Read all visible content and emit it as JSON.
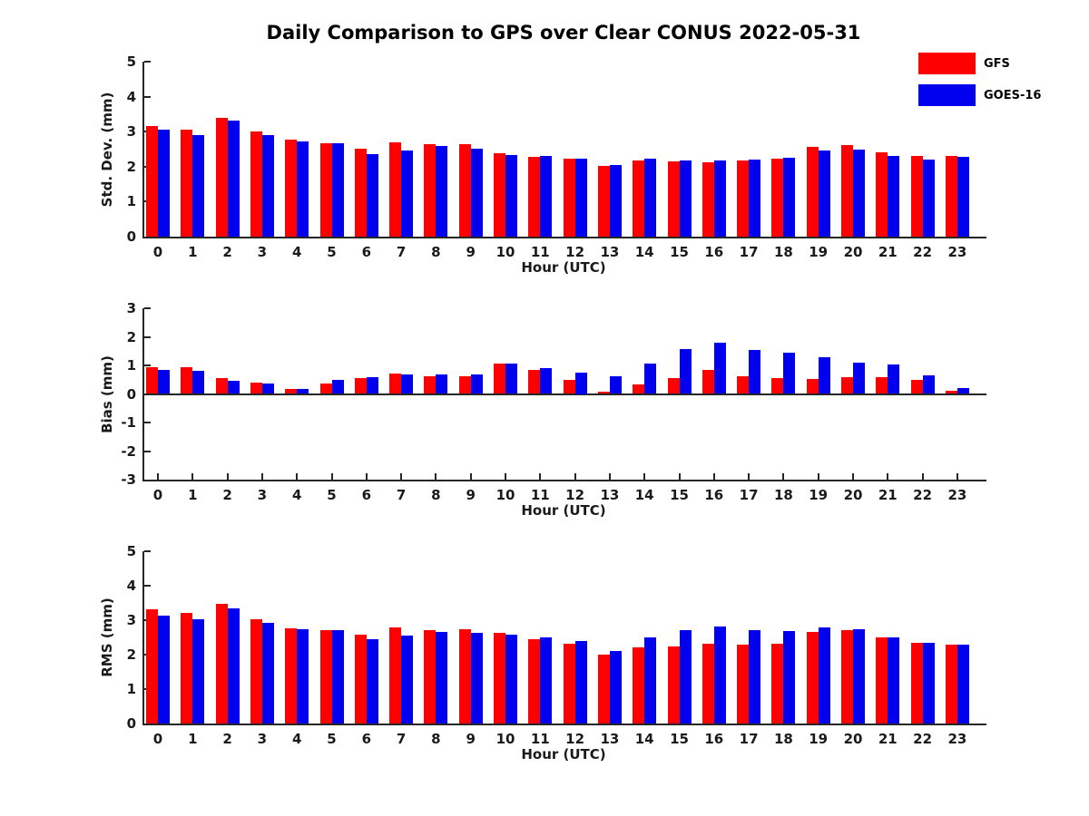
{
  "title": "Daily Comparison to GPS over Clear CONUS 2022-05-31",
  "colors": {
    "gfs": "#ff0000",
    "goes16": "#0000ee",
    "axis": "#262626",
    "text": "#1a1a1a"
  },
  "legend": {
    "position": "top-right",
    "items": [
      {
        "label": "GFS",
        "color": "#ff0000"
      },
      {
        "label": "GOES-16",
        "color": "#0000ee"
      }
    ]
  },
  "chart_data": [
    {
      "type": "bar",
      "panel": "std-dev",
      "ylabel": "Std. Dev. (mm)",
      "xlabel": "Hour (UTC)",
      "ylim": [
        0,
        5
      ],
      "yticks": [
        0,
        1,
        2,
        3,
        4,
        5
      ],
      "grid": false,
      "categories": [
        "0",
        "1",
        "2",
        "3",
        "4",
        "5",
        "6",
        "7",
        "8",
        "9",
        "10",
        "11",
        "12",
        "13",
        "14",
        "15",
        "16",
        "17",
        "18",
        "19",
        "20",
        "21",
        "22",
        "23"
      ],
      "series": [
        {
          "name": "GFS",
          "values": [
            3.15,
            3.06,
            3.4,
            3.01,
            2.76,
            2.67,
            2.51,
            2.7,
            2.63,
            2.63,
            2.39,
            2.27,
            2.23,
            2.02,
            2.18,
            2.14,
            2.12,
            2.18,
            2.24,
            2.57,
            2.61,
            2.41,
            2.31,
            2.31
          ]
        },
        {
          "name": "GOES-16",
          "values": [
            3.05,
            2.91,
            3.31,
            2.91,
            2.73,
            2.67,
            2.36,
            2.45,
            2.58,
            2.51,
            2.33,
            2.31,
            2.23,
            2.04,
            2.23,
            2.18,
            2.17,
            2.19,
            2.25,
            2.47,
            2.5,
            2.3,
            2.21,
            2.27
          ]
        }
      ]
    },
    {
      "type": "bar",
      "panel": "bias",
      "ylabel": "Bias (mm)",
      "xlabel": "Hour (UTC)",
      "ylim": [
        -3,
        3
      ],
      "yticks": [
        -3,
        -2,
        -1,
        0,
        1,
        2,
        3
      ],
      "grid": false,
      "categories": [
        "0",
        "1",
        "2",
        "3",
        "4",
        "5",
        "6",
        "7",
        "8",
        "9",
        "10",
        "11",
        "12",
        "13",
        "14",
        "15",
        "16",
        "17",
        "18",
        "19",
        "20",
        "21",
        "22",
        "23"
      ],
      "series": [
        {
          "name": "GFS",
          "values": [
            0.95,
            0.93,
            0.57,
            0.41,
            0.16,
            0.37,
            0.56,
            0.71,
            0.62,
            0.62,
            1.06,
            0.84,
            0.49,
            0.08,
            0.32,
            0.57,
            0.85,
            0.62,
            0.57,
            0.51,
            0.6,
            0.6,
            0.48,
            0.1
          ]
        },
        {
          "name": "GOES-16",
          "values": [
            0.84,
            0.81,
            0.46,
            0.38,
            0.17,
            0.49,
            0.6,
            0.68,
            0.67,
            0.67,
            1.05,
            0.89,
            0.75,
            0.61,
            1.06,
            1.56,
            1.79,
            1.53,
            1.45,
            1.27,
            1.1,
            1.02,
            0.65,
            0.2
          ]
        }
      ]
    },
    {
      "type": "bar",
      "panel": "rms",
      "ylabel": "RMS (mm)",
      "xlabel": "Hour (UTC)",
      "ylim": [
        0,
        5
      ],
      "yticks": [
        0,
        1,
        2,
        3,
        4,
        5
      ],
      "grid": false,
      "categories": [
        "0",
        "1",
        "2",
        "3",
        "4",
        "5",
        "6",
        "7",
        "8",
        "9",
        "10",
        "11",
        "12",
        "13",
        "14",
        "15",
        "16",
        "17",
        "18",
        "19",
        "20",
        "21",
        "22",
        "23"
      ],
      "series": [
        {
          "name": "GFS",
          "values": [
            3.32,
            3.22,
            3.47,
            3.03,
            2.77,
            2.7,
            2.58,
            2.79,
            2.7,
            2.74,
            2.64,
            2.44,
            2.31,
            2.01,
            2.2,
            2.25,
            2.31,
            2.3,
            2.32,
            2.66,
            2.72,
            2.5,
            2.34,
            2.3
          ]
        },
        {
          "name": "GOES-16",
          "values": [
            3.14,
            3.02,
            3.33,
            2.93,
            2.75,
            2.72,
            2.44,
            2.54,
            2.67,
            2.62,
            2.57,
            2.5,
            2.39,
            2.11,
            2.49,
            2.7,
            2.81,
            2.7,
            2.68,
            2.8,
            2.75,
            2.5,
            2.35,
            2.3
          ]
        }
      ]
    }
  ]
}
